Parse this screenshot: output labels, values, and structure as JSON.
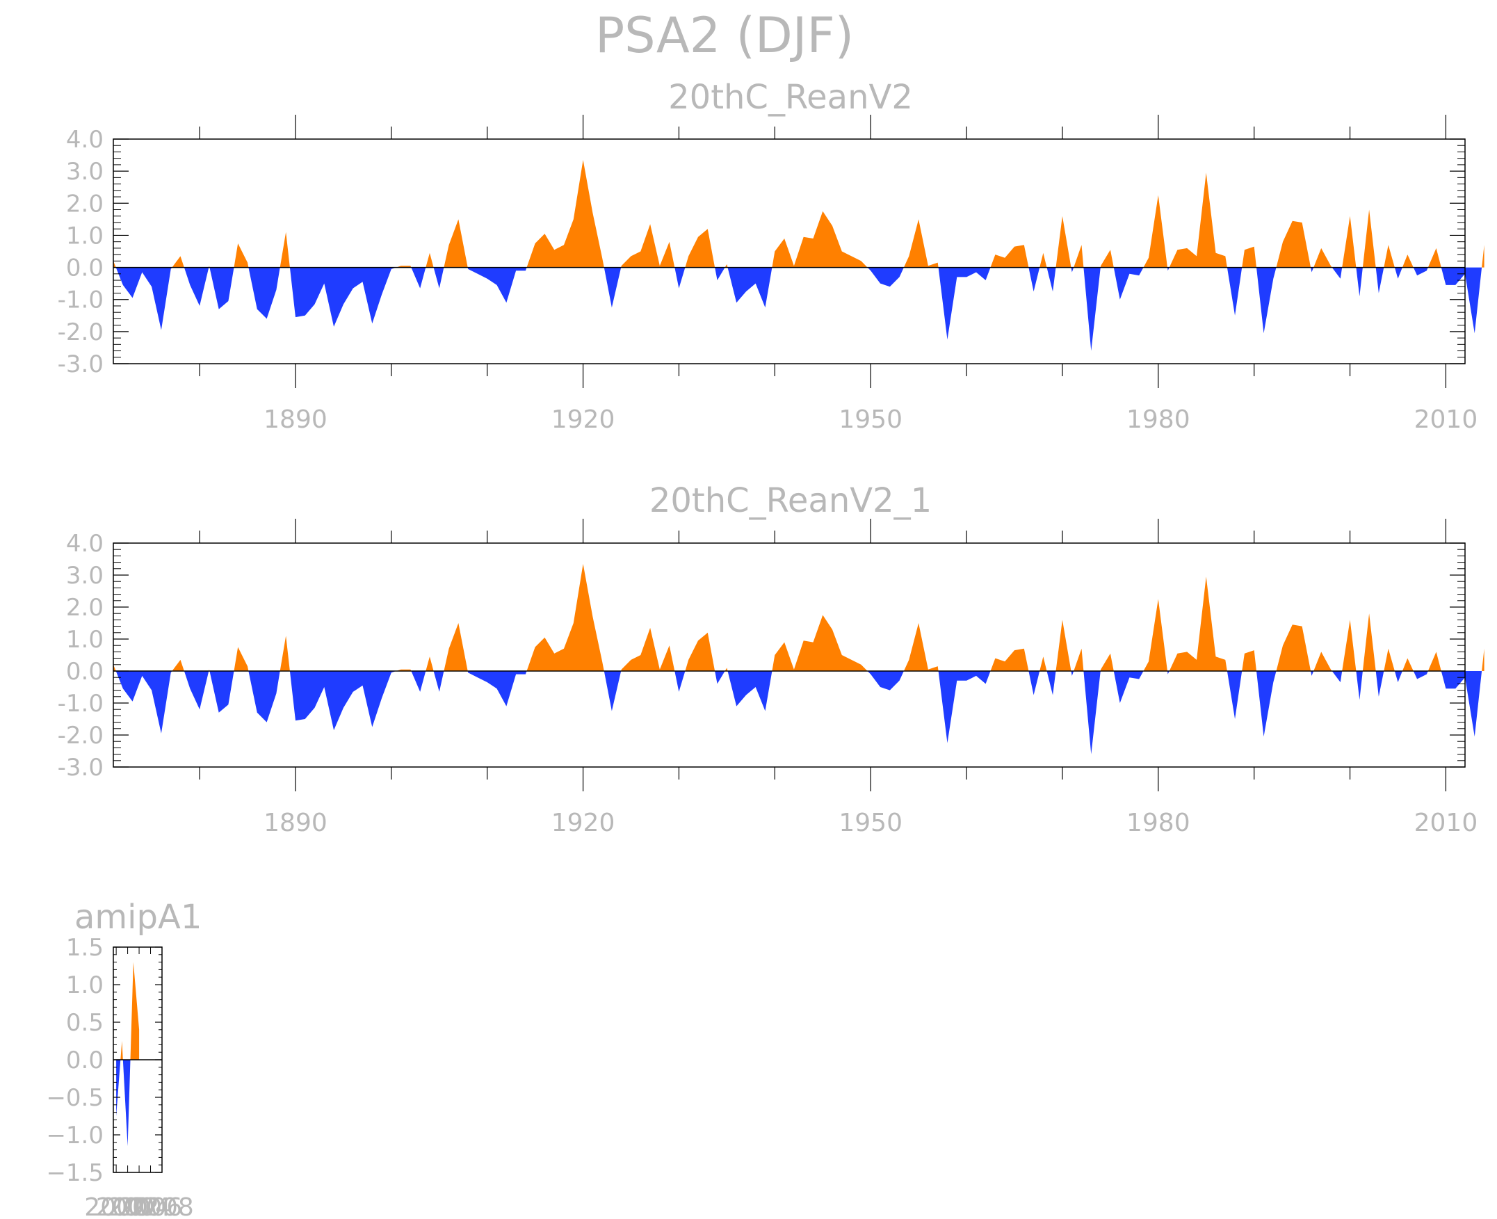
{
  "title": "PSA2 (DJF)",
  "colors": {
    "positive": "#ff8000",
    "negative": "#1f3cff",
    "frame": "#000000",
    "text": "#b8b8b8"
  },
  "chart_data": [
    {
      "type": "area",
      "title": "20thC_ReanV2",
      "xlim": [
        1871,
        2012
      ],
      "ylim": [
        -3.0,
        4.0
      ],
      "xticks": [
        1890,
        1920,
        1950,
        1980,
        2010
      ],
      "yticks": [
        -3.0,
        -2.0,
        -1.0,
        0.0,
        1.0,
        2.0,
        3.0,
        4.0
      ],
      "ytick_labels": [
        "-3.0",
        "-2.0",
        "-1.0",
        "0.0",
        "1.0",
        "2.0",
        "3.0",
        "4.0"
      ],
      "x_start": 1871,
      "values": [
        0.2,
        -0.55,
        -0.95,
        -0.15,
        -0.6,
        -1.95,
        -0.05,
        0.35,
        -0.55,
        -1.2,
        0.05,
        -1.3,
        -1.05,
        0.75,
        0.15,
        -1.3,
        -1.6,
        -0.7,
        1.1,
        -1.55,
        -1.5,
        -1.15,
        -0.5,
        -1.85,
        -1.15,
        -0.65,
        -0.45,
        -1.75,
        -0.85,
        -0.05,
        0.05,
        0.05,
        -0.65,
        0.45,
        -0.65,
        0.7,
        1.5,
        -0.05,
        -0.2,
        -0.35,
        -0.55,
        -1.1,
        -0.1,
        -0.1,
        0.75,
        1.05,
        0.55,
        0.7,
        1.5,
        3.35,
        1.7,
        0.3,
        -1.25,
        0.05,
        0.35,
        0.5,
        1.35,
        0.05,
        0.8,
        -0.65,
        0.35,
        0.95,
        1.2,
        -0.4,
        0.1,
        -1.1,
        -0.75,
        -0.5,
        -1.25,
        0.5,
        0.9,
        0.05,
        0.95,
        0.9,
        1.75,
        1.3,
        0.5,
        0.35,
        0.2,
        -0.1,
        -0.5,
        -0.6,
        -0.3,
        0.35,
        1.5,
        0.05,
        0.15,
        -2.25,
        -0.3,
        -0.3,
        -0.15,
        -0.4,
        0.4,
        0.3,
        0.65,
        0.7,
        -0.75,
        0.45,
        -0.75,
        1.6,
        -0.15,
        0.7,
        -2.6,
        0.05,
        0.55,
        -1.0,
        -0.2,
        -0.25,
        0.3,
        2.25,
        -0.1,
        0.55,
        0.6,
        0.35,
        2.95,
        0.45,
        0.35,
        -1.5,
        0.55,
        0.65,
        -2.05,
        -0.35,
        0.8,
        1.45,
        1.4,
        -0.15,
        0.6,
        0.05,
        -0.35,
        1.6,
        -0.9,
        1.8,
        -0.8,
        0.7,
        -0.35,
        0.4,
        -0.25,
        -0.1,
        0.6,
        -0.55,
        -0.55,
        -0.2,
        -2.05,
        0.7
      ]
    },
    {
      "type": "area",
      "title": "20thC_ReanV2_1",
      "xlim": [
        1871,
        2012
      ],
      "ylim": [
        -3.0,
        4.0
      ],
      "xticks": [
        1890,
        1920,
        1950,
        1980,
        2010
      ],
      "yticks": [
        -3.0,
        -2.0,
        -1.0,
        0.0,
        1.0,
        2.0,
        3.0,
        4.0
      ],
      "ytick_labels": [
        "-3.0",
        "-2.0",
        "-1.0",
        "0.0",
        "1.0",
        "2.0",
        "3.0",
        "4.0"
      ],
      "x_start": 1871,
      "values": [
        0.2,
        -0.55,
        -0.95,
        -0.15,
        -0.6,
        -1.95,
        -0.05,
        0.35,
        -0.55,
        -1.2,
        0.05,
        -1.3,
        -1.05,
        0.75,
        0.15,
        -1.3,
        -1.6,
        -0.7,
        1.1,
        -1.55,
        -1.5,
        -1.15,
        -0.5,
        -1.85,
        -1.15,
        -0.65,
        -0.45,
        -1.75,
        -0.85,
        -0.05,
        0.05,
        0.05,
        -0.65,
        0.45,
        -0.65,
        0.7,
        1.5,
        -0.05,
        -0.2,
        -0.35,
        -0.55,
        -1.1,
        -0.1,
        -0.1,
        0.75,
        1.05,
        0.55,
        0.7,
        1.5,
        3.35,
        1.7,
        0.3,
        -1.25,
        0.05,
        0.35,
        0.5,
        1.35,
        0.05,
        0.8,
        -0.65,
        0.35,
        0.95,
        1.2,
        -0.4,
        0.1,
        -1.1,
        -0.75,
        -0.5,
        -1.25,
        0.5,
        0.9,
        0.05,
        0.95,
        0.9,
        1.75,
        1.3,
        0.5,
        0.35,
        0.2,
        -0.1,
        -0.5,
        -0.6,
        -0.3,
        0.35,
        1.5,
        0.05,
        0.15,
        -2.25,
        -0.3,
        -0.3,
        -0.15,
        -0.4,
        0.4,
        0.3,
        0.65,
        0.7,
        -0.75,
        0.45,
        -0.75,
        1.6,
        -0.15,
        0.7,
        -2.6,
        0.05,
        0.55,
        -1.0,
        -0.2,
        -0.25,
        0.3,
        2.25,
        -0.1,
        0.55,
        0.6,
        0.35,
        2.95,
        0.45,
        0.35,
        -1.5,
        0.55,
        0.65,
        -2.05,
        -0.35,
        0.8,
        1.45,
        1.4,
        -0.15,
        0.6,
        0.05,
        -0.35,
        1.6,
        -0.9,
        1.8,
        -0.8,
        0.7,
        -0.35,
        0.4,
        -0.25,
        -0.1,
        0.6,
        -0.55,
        -0.55,
        -0.2,
        -2.05,
        0.7
      ]
    },
    {
      "type": "area",
      "title": "amipA1",
      "xlim": [
        1999.5,
        2008
      ],
      "ylim": [
        -1.5,
        1.5
      ],
      "xticks": [
        2000,
        2002,
        2004,
        2006,
        2008
      ],
      "xtick_labels": [
        "2000",
        "2002",
        "2004",
        "2006",
        "2008"
      ],
      "yticks": [
        -1.5,
        -1.0,
        -0.5,
        0.0,
        0.5,
        1.0,
        1.5
      ],
      "ytick_labels": [
        "−1.5",
        "−1.0",
        "−0.5",
        "0.0",
        "0.5",
        "1.0",
        "1.5"
      ],
      "x_start": 2000,
      "values": [
        -0.75,
        0.25,
        -1.15,
        1.3,
        0.4
      ]
    }
  ]
}
